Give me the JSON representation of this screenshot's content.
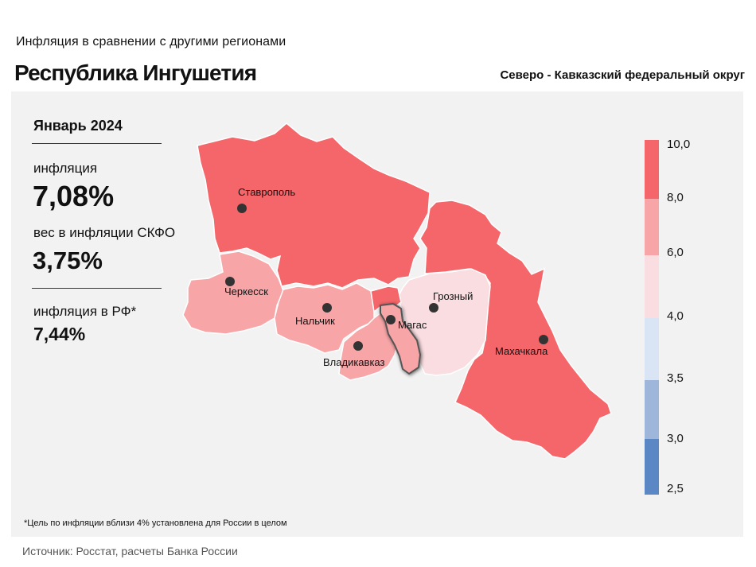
{
  "header": {
    "subtitle": "Инфляция  в сравнении  с другими  регионами",
    "title": "Республика Ингушетия",
    "district": "Северо - Кавказский федеральный округ"
  },
  "panel": {
    "period": "Январь 2024",
    "inflation_label": "инфляция",
    "inflation_value": "7,08%",
    "weight_label": "вес в инфляции  СКФО",
    "weight_value": "3,75%",
    "rf_label": "инфляция  в РФ*",
    "rf_value": "7,44%"
  },
  "footnote": "*Цель по инфляции вблизи 4% установлена для России в целом",
  "source": "Источник: Росстат, расчеты Банка России",
  "legend": {
    "values": [
      "10,0",
      "8,0",
      "6,0",
      "4,0",
      "3,5",
      "3,0",
      "2,5"
    ],
    "colors": [
      "#f4666a",
      "#f8a5a7",
      "#f9dde0",
      "#d9e4f4",
      "#9db6da",
      "#5b87c5"
    ]
  },
  "map": {
    "highlighted_region": "Магас",
    "regions": [
      {
        "name": "Ставрополь",
        "category": "8-10",
        "color": "#f4666a"
      },
      {
        "name": "Махачкала",
        "category": "8-10",
        "color": "#f4666a"
      },
      {
        "name": "Черкесск",
        "category": "6-8",
        "color": "#f8a5a7"
      },
      {
        "name": "Нальчик",
        "category": "6-8",
        "color": "#f8a5a7"
      },
      {
        "name": "Владикавказ",
        "category": "6-8",
        "color": "#f8a5a7"
      },
      {
        "name": "Магас",
        "category": "6-8",
        "color": "#f8a5a7"
      },
      {
        "name": "Грозный",
        "category": "4-6",
        "color": "#f9dde0"
      }
    ]
  }
}
